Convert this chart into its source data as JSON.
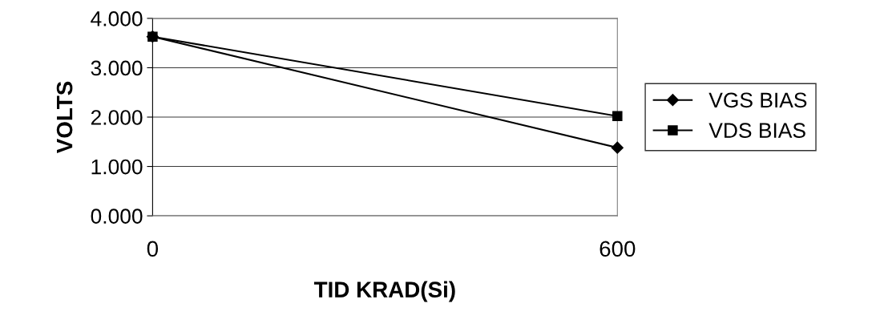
{
  "chart_data": {
    "type": "line",
    "xlabel": "TID KRAD(Si)",
    "ylabel": "VOLTS",
    "x": [
      0,
      600
    ],
    "series": [
      {
        "name": "VGS BIAS",
        "color": "#000000",
        "marker": "diamond",
        "values": [
          3.63,
          1.38
        ]
      },
      {
        "name": "VDS BIAS",
        "color": "#000000",
        "marker": "square",
        "values": [
          3.63,
          2.02
        ]
      }
    ],
    "xlim": [
      0,
      600
    ],
    "xticks": [
      0,
      600
    ],
    "ylim": [
      0,
      4
    ],
    "yticks": [
      {
        "value": 0,
        "label": "0.000"
      },
      {
        "value": 1,
        "label": "1.000"
      },
      {
        "value": 2,
        "label": "2.000"
      },
      {
        "value": 3,
        "label": "3.000"
      },
      {
        "value": 4,
        "label": "4.000"
      }
    ],
    "grid": "y",
    "legend": "right",
    "line_style": "solid"
  }
}
